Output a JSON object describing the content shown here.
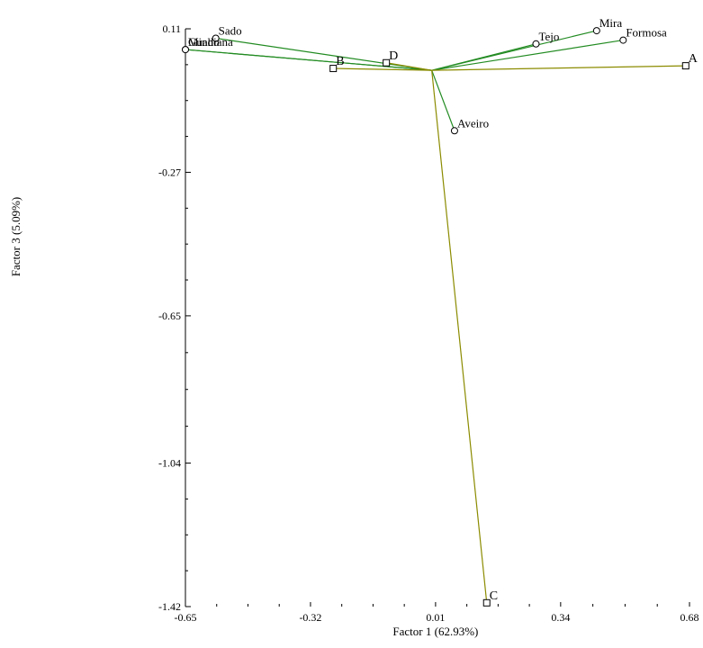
{
  "chart_data": {
    "type": "scatter",
    "title": "",
    "xlabel": "Factor 1 (62.93%)",
    "ylabel": "Factor 3 (5.09%)",
    "xlim": [
      -0.65,
      0.68
    ],
    "ylim": [
      -1.42,
      0.11
    ],
    "xticks": [
      "-0.65",
      "-0.32",
      "0.01",
      "0.34",
      "0.68"
    ],
    "xtick_values": [
      -0.65,
      -0.32,
      0.01,
      0.34,
      0.68
    ],
    "yticks": [
      "0.11",
      "-0.27",
      "-0.65",
      "-1.04",
      "-1.42"
    ],
    "ytick_values": [
      0.11,
      -0.27,
      -0.65,
      -1.04,
      -1.42
    ],
    "origin": [
      -0.0,
      0.0
    ],
    "colors": {
      "rows": "#228b22",
      "columns": "#8b8b00"
    },
    "series": [
      {
        "marker": "circle",
        "points": [
          {
            "label": "Sado",
            "x": -0.57,
            "y": 0.085
          },
          {
            "label": "Guadiana",
            "x": -0.65,
            "y": 0.055
          },
          {
            "label": "Minho",
            "x": -0.65,
            "y": 0.055
          },
          {
            "label": "Tejo",
            "x": 0.275,
            "y": 0.07
          },
          {
            "label": "Mira",
            "x": 0.435,
            "y": 0.105
          },
          {
            "label": "Formosa",
            "x": 0.505,
            "y": 0.08
          },
          {
            "label": "Aveiro",
            "x": 0.06,
            "y": -0.16
          }
        ]
      },
      {
        "marker": "square",
        "points": [
          {
            "label": "A",
            "x": 0.67,
            "y": 0.012
          },
          {
            "label": "B",
            "x": -0.26,
            "y": 0.005
          },
          {
            "label": "C",
            "x": 0.145,
            "y": -1.41
          },
          {
            "label": "D",
            "x": -0.12,
            "y": 0.02
          }
        ]
      }
    ]
  }
}
